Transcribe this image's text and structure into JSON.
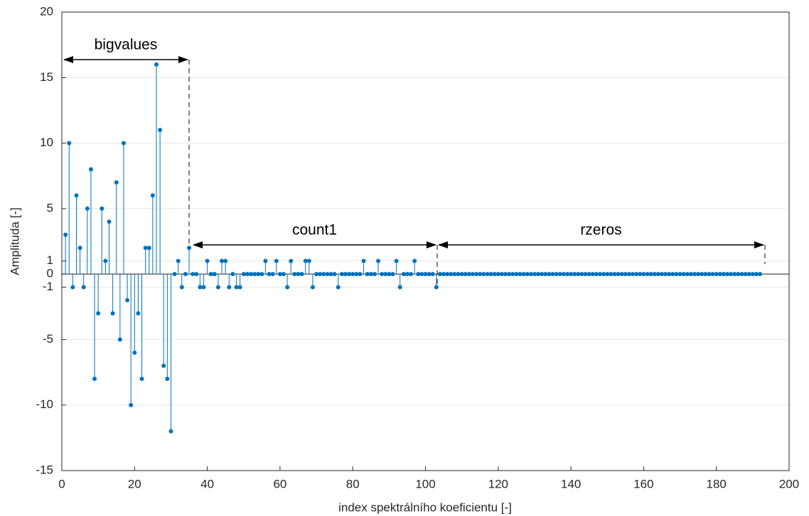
{
  "chart_data": {
    "type": "stem",
    "xlabel": "index spektrálního koeficientu [-]",
    "ylabel": "Amplituda [-]",
    "color": "#0072bd",
    "grid": "y",
    "xlim": [
      0,
      200
    ],
    "xticks": [
      0,
      20,
      40,
      60,
      80,
      100,
      120,
      140,
      160,
      180,
      200
    ],
    "ylim": [
      -15,
      20
    ],
    "yticks": [
      -15,
      -10,
      -5,
      -1,
      0,
      1,
      5,
      10,
      15,
      20
    ],
    "annotations": [
      "bigvalues",
      "count1",
      "rzeros"
    ],
    "x": [
      1,
      2,
      3,
      4,
      5,
      6,
      7,
      8,
      9,
      10,
      11,
      12,
      13,
      14,
      15,
      16,
      17,
      18,
      19,
      20,
      21,
      22,
      23,
      24,
      25,
      26,
      27,
      28,
      29,
      30,
      31,
      32,
      33,
      34,
      35,
      36,
      37,
      38,
      39,
      40,
      41,
      42,
      43,
      44,
      45,
      46,
      47,
      48,
      49,
      50,
      51,
      52,
      53,
      54,
      55,
      56,
      57,
      58,
      59,
      60,
      61,
      62,
      63,
      64,
      65,
      66,
      67,
      68,
      69,
      70,
      71,
      72,
      73,
      74,
      75,
      76,
      77,
      78,
      79,
      80,
      81,
      82,
      83,
      84,
      85,
      86,
      87,
      88,
      89,
      90,
      91,
      92,
      93,
      94,
      95,
      96,
      97,
      98,
      99,
      100,
      101,
      102,
      103,
      104,
      105,
      106,
      107,
      108,
      109,
      110,
      111,
      112,
      113,
      114,
      115,
      116,
      117,
      118,
      119,
      120,
      121,
      122,
      123,
      124,
      125,
      126,
      127,
      128,
      129,
      130,
      131,
      132,
      133,
      134,
      135,
      136,
      137,
      138,
      139,
      140,
      141,
      142,
      143,
      144,
      145,
      146,
      147,
      148,
      149,
      150,
      151,
      152,
      153,
      154,
      155,
      156,
      157,
      158,
      159,
      160,
      161,
      162,
      163,
      164,
      165,
      166,
      167,
      168,
      169,
      170,
      171,
      172,
      173,
      174,
      175,
      176,
      177,
      178,
      179,
      180,
      181,
      182,
      183,
      184,
      185,
      186,
      187,
      188,
      189,
      190,
      191,
      192
    ],
    "values": [
      3,
      10,
      -1,
      6,
      2,
      -1,
      5,
      8,
      -8,
      -3,
      5,
      1,
      4,
      -3,
      7,
      -5,
      10,
      -2,
      -10,
      -6,
      -3,
      -8,
      2,
      2,
      6,
      16,
      11,
      -7,
      -8,
      -12,
      0,
      1,
      -1,
      0,
      2,
      0,
      0,
      -1,
      -1,
      1,
      0,
      0,
      -1,
      1,
      1,
      -1,
      0,
      -1,
      -1,
      0,
      0,
      0,
      0,
      0,
      0,
      1,
      0,
      0,
      1,
      0,
      0,
      -1,
      1,
      0,
      0,
      0,
      1,
      1,
      -1,
      0,
      0,
      0,
      0,
      0,
      0,
      -1,
      0,
      0,
      0,
      0,
      0,
      0,
      1,
      0,
      0,
      0,
      1,
      0,
      0,
      0,
      0,
      1,
      -1,
      0,
      0,
      0,
      1,
      0,
      0,
      0,
      0,
      0,
      -1,
      0,
      0,
      0,
      0,
      0,
      0,
      0,
      0,
      0,
      0,
      0,
      0,
      0,
      0,
      0,
      0,
      0,
      0,
      0,
      0,
      0,
      0,
      0,
      0,
      0,
      0,
      0,
      0,
      0,
      0,
      0,
      0,
      0,
      0,
      0,
      0,
      0,
      0,
      0,
      0,
      0,
      0,
      0,
      0,
      0,
      0,
      0,
      0,
      0,
      0,
      0,
      0,
      0,
      0,
      0,
      0,
      0,
      0,
      0,
      0,
      0,
      0,
      0,
      0,
      0,
      0,
      0,
      0,
      0,
      0,
      0,
      0,
      0,
      0,
      0,
      0,
      0,
      0,
      0,
      0,
      0,
      0,
      0,
      0,
      0,
      0,
      0,
      0,
      0
    ]
  }
}
